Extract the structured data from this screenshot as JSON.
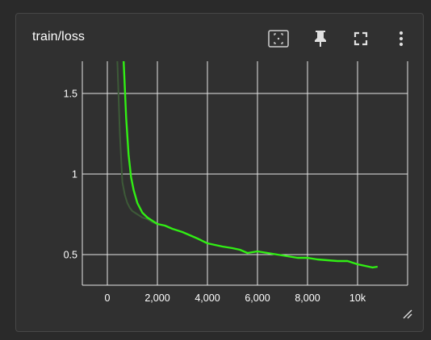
{
  "card": {
    "title": "train/loss",
    "tools": {
      "fit_domain": "fit-to-data-icon",
      "pin": "pin-icon",
      "fullscreen": "fullscreen-icon",
      "more": "more-vert-icon"
    }
  },
  "chart_data": {
    "type": "line",
    "title": "train/loss",
    "xlabel": "",
    "ylabel": "",
    "xlim": [
      -1000,
      12000
    ],
    "ylim": [
      0.31,
      1.7
    ],
    "x_ticks": [
      0,
      2000,
      4000,
      6000,
      8000,
      10000
    ],
    "x_tick_labels": [
      "0",
      "2,000",
      "4,000",
      "6,000",
      "8,000",
      "10k"
    ],
    "y_ticks": [
      0.5,
      1,
      1.5
    ],
    "y_tick_labels": [
      "0.5",
      "1",
      "1.5"
    ],
    "grid": true,
    "legend": "none",
    "series": [
      {
        "color": "#3d5a38",
        "x": [
          400,
          500,
          600,
          700,
          800,
          900,
          1000,
          1200,
          1400,
          1600,
          1800,
          2000
        ],
        "y": [
          1.7,
          1.25,
          0.95,
          0.87,
          0.82,
          0.79,
          0.77,
          0.75,
          0.73,
          0.72,
          0.7,
          0.69
        ]
      },
      {
        "color": "#31ee14",
        "x": [
          650,
          750,
          850,
          950,
          1050,
          1200,
          1400,
          1600,
          1800,
          2000,
          2300,
          2600,
          3000,
          3300,
          3600,
          4000,
          4300,
          4600,
          5000,
          5300,
          5600,
          6000,
          6400,
          6800,
          7200,
          7600,
          8000,
          8400,
          8800,
          9200,
          9600,
          9800,
          10000,
          10300,
          10600,
          10800
        ],
        "y": [
          1.7,
          1.35,
          1.12,
          0.98,
          0.9,
          0.82,
          0.76,
          0.73,
          0.71,
          0.69,
          0.68,
          0.66,
          0.64,
          0.62,
          0.6,
          0.57,
          0.56,
          0.55,
          0.54,
          0.53,
          0.51,
          0.52,
          0.51,
          0.5,
          0.49,
          0.48,
          0.48,
          0.47,
          0.465,
          0.46,
          0.46,
          0.45,
          0.44,
          0.43,
          0.42,
          0.425
        ]
      }
    ]
  }
}
